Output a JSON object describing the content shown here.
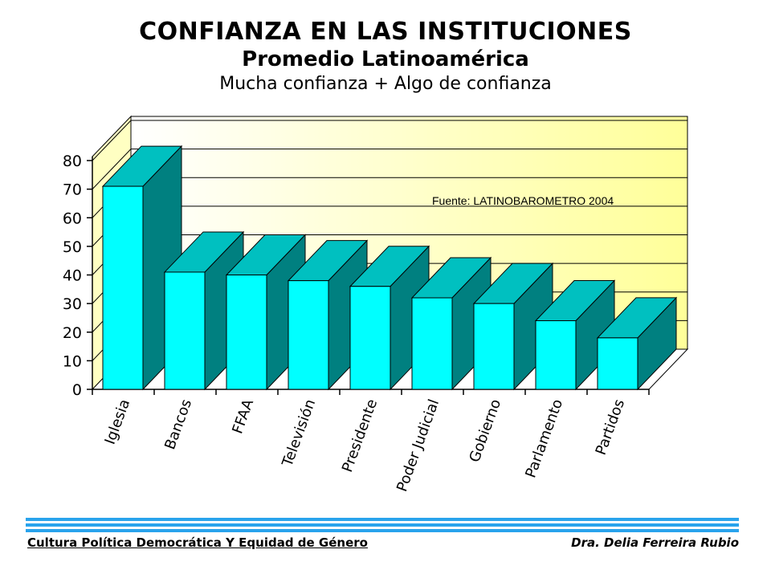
{
  "header": {
    "title": "CONFIANZA EN LAS INSTITUCIONES",
    "subtitle": "Promedio Latinoamérica",
    "subtitle2": "Mucha confianza + Algo de confianza"
  },
  "chart_data": {
    "type": "bar",
    "categories": [
      "Iglesia",
      "Bancos",
      "FFAA",
      "Televisión",
      "Presidente",
      "Poder Judicial",
      "Gobierno",
      "Parlamento",
      "Partidos"
    ],
    "values": [
      71,
      41,
      40,
      38,
      36,
      32,
      30,
      24,
      18
    ],
    "ylim": [
      0,
      80
    ],
    "yticks": [
      0,
      10,
      20,
      30,
      40,
      50,
      60,
      70,
      80
    ],
    "annotation": "Fuente: LATINOBAROMETRO 2004",
    "style": "3d-bar",
    "legend": "none",
    "grid": true,
    "colors": {
      "bar_front": "#00ffff",
      "bar_top": "#00c0c0",
      "bar_side": "#008080",
      "wall_start": "#ffffff",
      "wall_end": "#ffff99"
    }
  },
  "footer": {
    "left": "Cultura Política Democrática Y Equidad de Género",
    "right": "Dra. Delia Ferreira Rubio"
  }
}
